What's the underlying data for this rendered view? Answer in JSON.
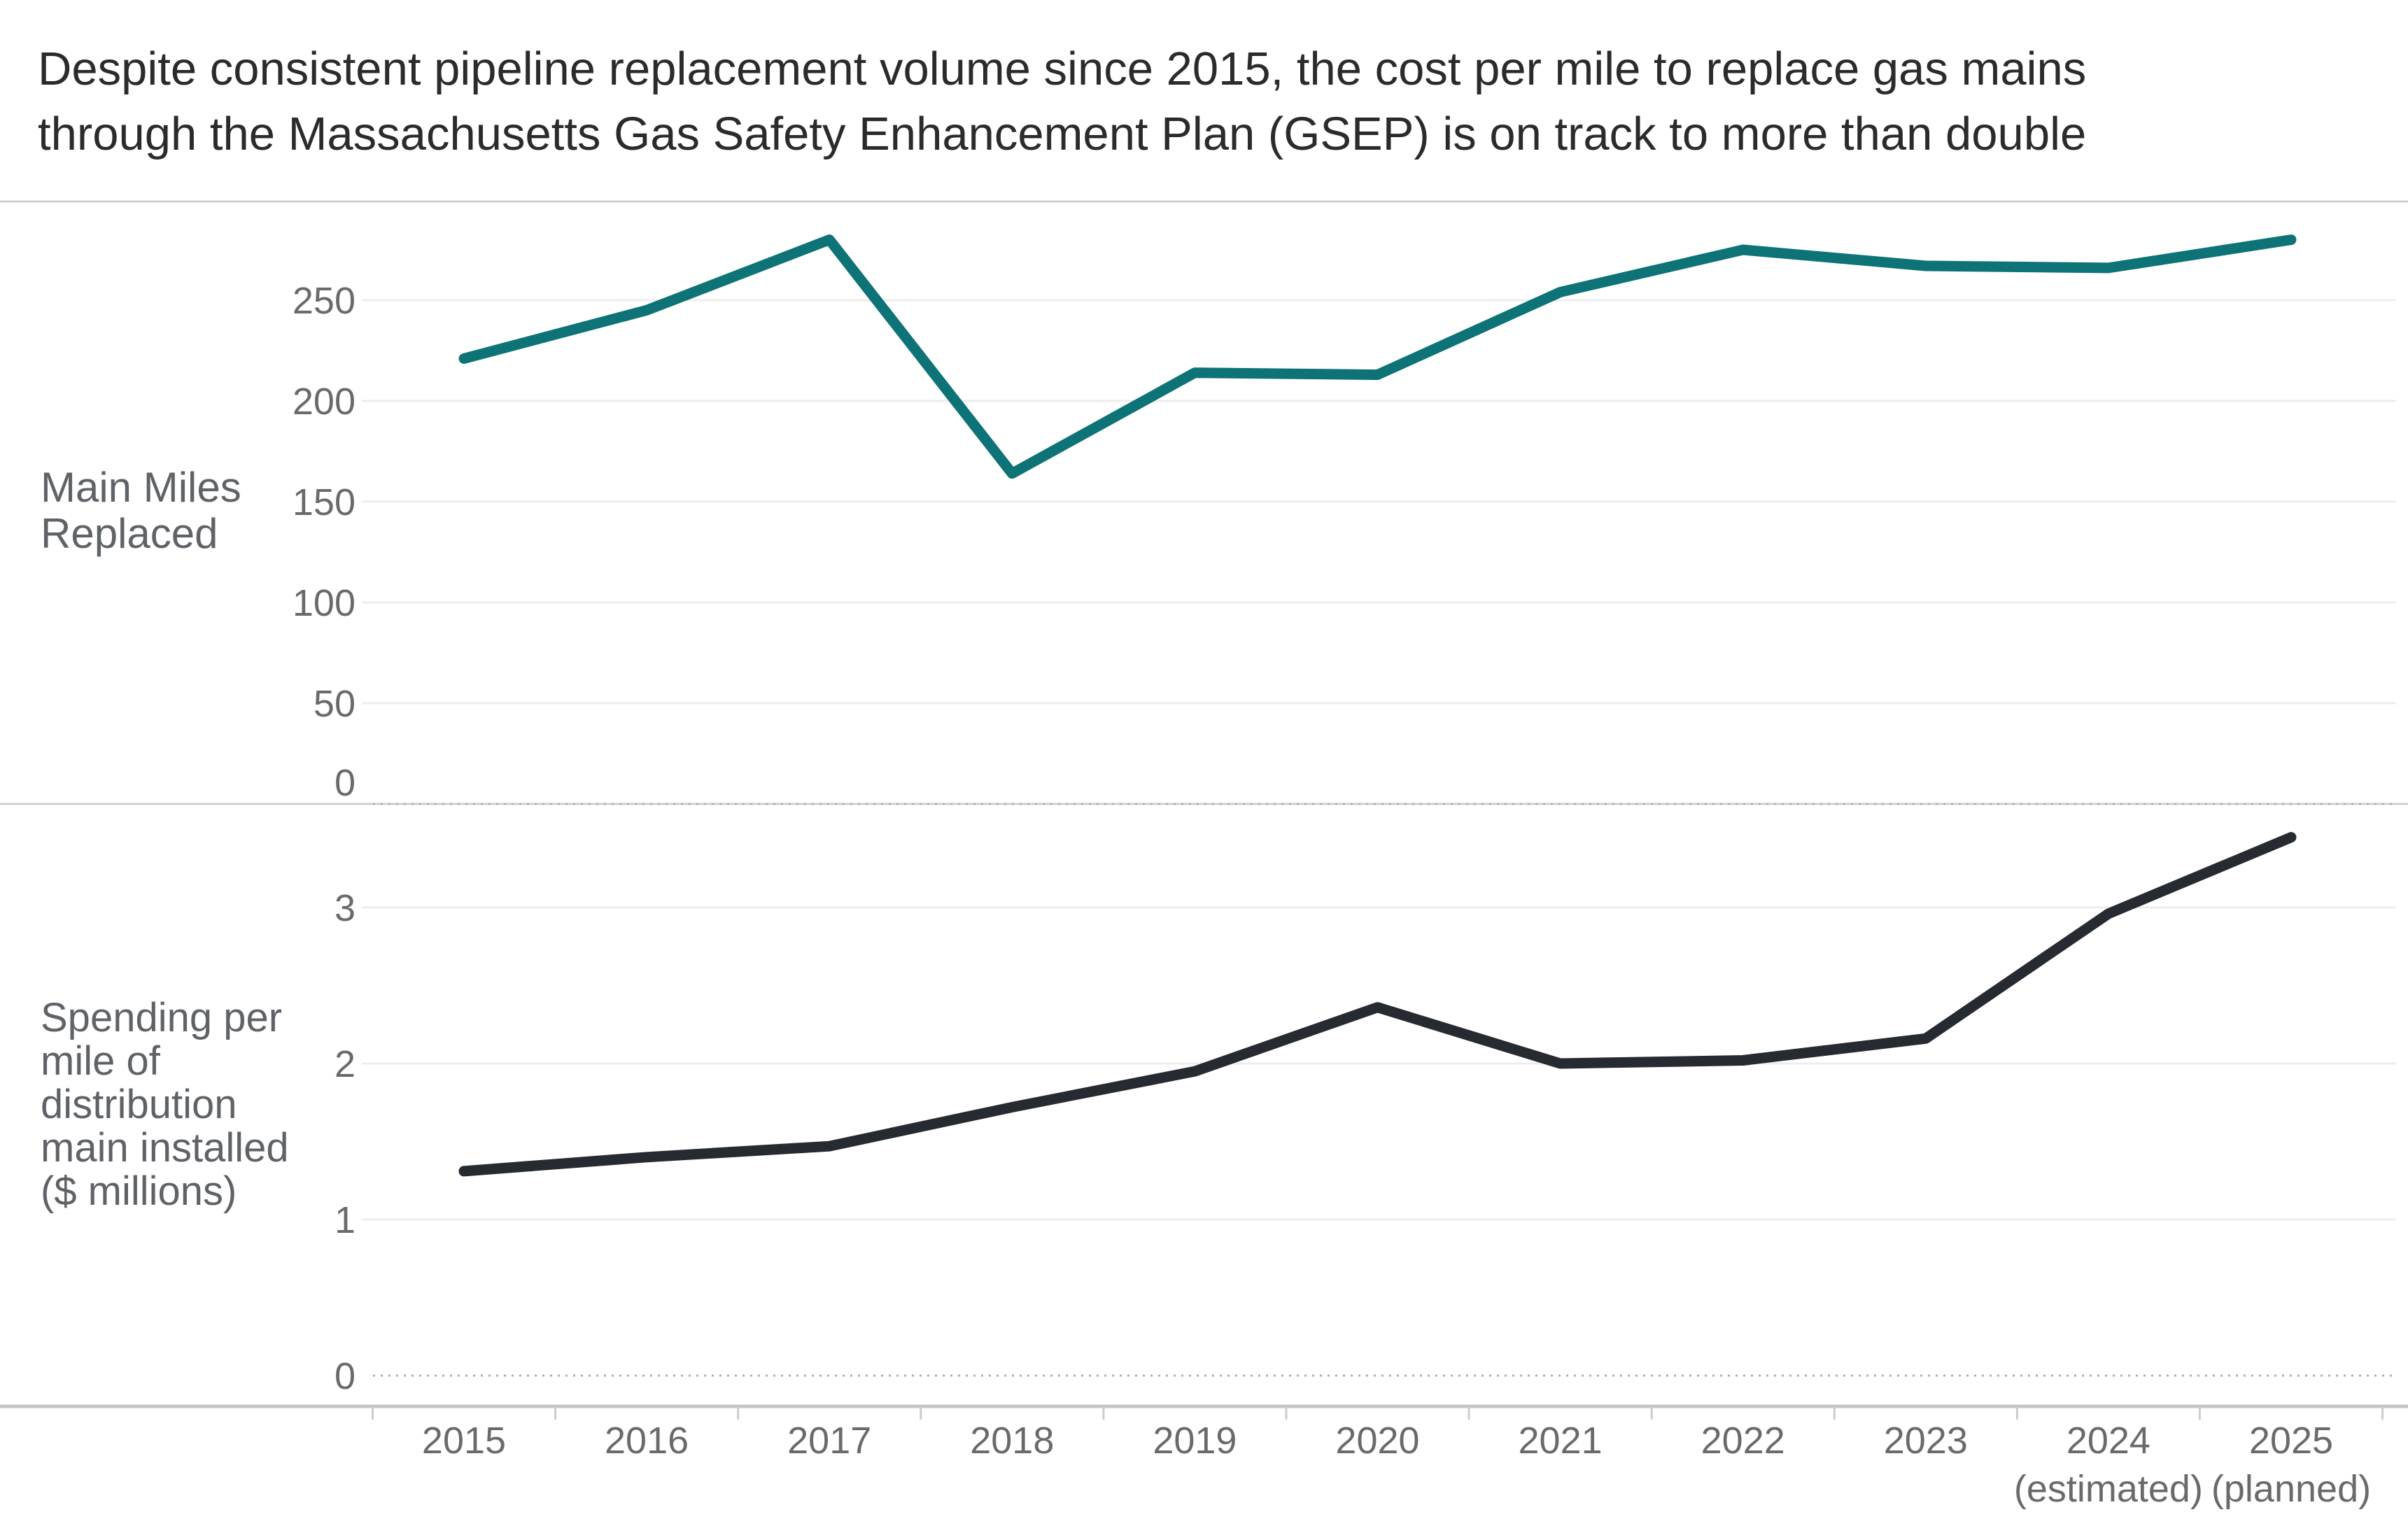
{
  "page_title": {
    "line1": "Despite consistent pipeline replacement volume since 2015, the cost per mile to replace gas mains",
    "line2": "through the Massachusetts Gas Safety Enhancement Plan (GSEP) is on track to more than double"
  },
  "x_axis": {
    "years": [
      "2015",
      "2016",
      "2017",
      "2018",
      "2019",
      "2020",
      "2021",
      "2022",
      "2023",
      "2024",
      "2025"
    ],
    "notes": [
      "",
      "",
      "",
      "",
      "",
      "",
      "",
      "",
      "",
      "(estimated)",
      "(planned)"
    ]
  },
  "colors": {
    "top_line": "#0D7377",
    "bottom_line": "#262A31",
    "gridline": "#EDEDED",
    "panel_border": "#CFCFCF",
    "zero_dotted": "#B0B0B0",
    "axis_line": "#C4C4C4",
    "tick_mark": "#CCCCCC",
    "tick_label": "#6A6A6A",
    "title_text": "#2B2B2B",
    "side_label": "#5F6368"
  },
  "chart_data": [
    {
      "type": "line",
      "title": "Main Miles Replaced",
      "ylabel_lines": [
        "Main Miles",
        "Replaced"
      ],
      "categories": [
        "2015",
        "2016",
        "2017",
        "2018",
        "2019",
        "2020",
        "2021",
        "2022",
        "2023",
        "2024 (estimated)",
        "2025 (planned)"
      ],
      "values": [
        221,
        245,
        280,
        164,
        214,
        213,
        254,
        275,
        267,
        266,
        280
      ],
      "yticks": [
        0,
        50,
        100,
        150,
        200,
        250
      ],
      "ylim": [
        0,
        299
      ],
      "grid": true,
      "legend": "none",
      "line_color": "#0D7377"
    },
    {
      "type": "line",
      "title": "Spending per mile of distribution main installed ($ millions)",
      "ylabel_lines": [
        "Spending per",
        "mile of",
        "distribution",
        "main installed",
        "($ millions)"
      ],
      "categories": [
        "2015",
        "2016",
        "2017",
        "2018",
        "2019",
        "2020",
        "2021",
        "2022",
        "2023",
        "2024 (estimated)",
        "2025 (planned)"
      ],
      "values": [
        1.31,
        1.4,
        1.47,
        1.72,
        1.95,
        2.36,
        2.0,
        2.02,
        2.16,
        2.96,
        3.45
      ],
      "yticks": [
        0,
        1,
        2,
        3
      ],
      "ylim": [
        0,
        3.66
      ],
      "grid": true,
      "legend": "none",
      "line_color": "#262A31"
    }
  ]
}
